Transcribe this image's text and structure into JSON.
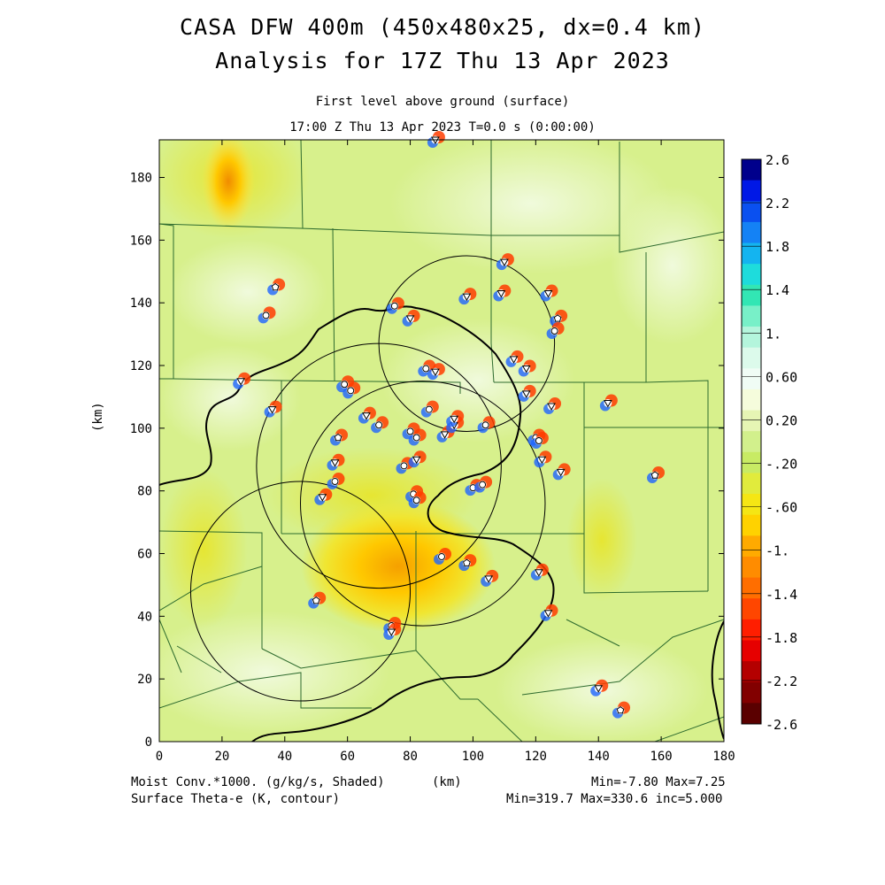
{
  "titles": {
    "line1": "CASA DFW 400m (450x480x25, dx=0.4 km)",
    "line2": "Analysis for 17Z Thu 13 Apr 2023",
    "sub1": "First level above ground (surface)",
    "sub2": "17:00 Z Thu 13 Apr 2023   T=0.0 s (0:00:00)"
  },
  "axes": {
    "x_label": "(km)",
    "y_label": "(km)",
    "x_range": [
      0,
      180
    ],
    "y_range": [
      0,
      192
    ],
    "x_ticks": [
      "0",
      "20",
      "40",
      "60",
      "80",
      "100",
      "120",
      "140",
      "160",
      "180"
    ],
    "y_ticks": [
      "0",
      "20",
      "40",
      "60",
      "80",
      "100",
      "120",
      "140",
      "160",
      "180"
    ]
  },
  "colorbar": {
    "labels": [
      "2.6",
      "2.2",
      "1.8",
      "1.4",
      "1.",
      "0.60",
      "0.20",
      "-.20",
      "-.60",
      "-1.",
      "-1.4",
      "-1.8",
      "-2.2",
      "-2.6"
    ],
    "colors": [
      "#00008c",
      "#0018e6",
      "#0a50f0",
      "#1482f5",
      "#14b4f0",
      "#1edcdc",
      "#32e6b4",
      "#78f0c8",
      "#b4f5dc",
      "#dcfaeb",
      "#f0fcf5",
      "#f5fcdc",
      "#e6f5b4",
      "#d2f08c",
      "#c8eb64",
      "#e1eb3c",
      "#f5e614",
      "#ffd200",
      "#ffaa00",
      "#ff8c00",
      "#ff6e00",
      "#ff4600",
      "#ff1e00",
      "#e60000",
      "#b40000",
      "#820000",
      "#5a0000"
    ]
  },
  "footer": {
    "left1": "Moist Conv.*1000. (g/kg/s, Shaded)",
    "mid1": "(km)",
    "right1": "Min=-7.80 Max=7.25",
    "left2": "Surface Theta-e (K, contour)",
    "right2": "Min=319.7 Max=330.6 inc=5.000"
  },
  "radars": [
    {
      "x": 98,
      "y": 127,
      "r": 28
    },
    {
      "x": 70,
      "y": 88,
      "r": 39
    },
    {
      "x": 84,
      "y": 76,
      "r": 39
    },
    {
      "x": 45,
      "y": 48,
      "r": 35
    }
  ],
  "stations": [
    {
      "x": 88,
      "y": 192,
      "s": "down"
    },
    {
      "x": 37,
      "y": 145,
      "s": "pent"
    },
    {
      "x": 34,
      "y": 136,
      "s": "circ"
    },
    {
      "x": 75,
      "y": 139,
      "s": "circ"
    },
    {
      "x": 80,
      "y": 135,
      "s": "down"
    },
    {
      "x": 98,
      "y": 142,
      "s": "down"
    },
    {
      "x": 109,
      "y": 143,
      "s": "down"
    },
    {
      "x": 110,
      "y": 153,
      "s": "down"
    },
    {
      "x": 124,
      "y": 143,
      "s": "down"
    },
    {
      "x": 127,
      "y": 135,
      "s": "pent"
    },
    {
      "x": 126,
      "y": 131,
      "s": "circ"
    },
    {
      "x": 26,
      "y": 115,
      "s": "down"
    },
    {
      "x": 36,
      "y": 106,
      "s": "down"
    },
    {
      "x": 59,
      "y": 114,
      "s": "circ"
    },
    {
      "x": 61,
      "y": 112,
      "s": "circ"
    },
    {
      "x": 66,
      "y": 104,
      "s": "down"
    },
    {
      "x": 70,
      "y": 101,
      "s": "circ"
    },
    {
      "x": 85,
      "y": 119,
      "s": "circ"
    },
    {
      "x": 88,
      "y": 118,
      "s": "down"
    },
    {
      "x": 113,
      "y": 122,
      "s": "down"
    },
    {
      "x": 117,
      "y": 119,
      "s": "down"
    },
    {
      "x": 117,
      "y": 111,
      "s": "down"
    },
    {
      "x": 125,
      "y": 107,
      "s": "down"
    },
    {
      "x": 143,
      "y": 108,
      "s": "down"
    },
    {
      "x": 57,
      "y": 97,
      "s": "pent"
    },
    {
      "x": 80,
      "y": 99,
      "s": "circ"
    },
    {
      "x": 82,
      "y": 97,
      "s": "circ"
    },
    {
      "x": 86,
      "y": 106,
      "s": "circ"
    },
    {
      "x": 91,
      "y": 98,
      "s": "down"
    },
    {
      "x": 94,
      "y": 101,
      "s": "down"
    },
    {
      "x": 94,
      "y": 103,
      "s": "down"
    },
    {
      "x": 104,
      "y": 101,
      "s": "circ"
    },
    {
      "x": 120,
      "y": 97,
      "s": "circ"
    },
    {
      "x": 121,
      "y": 96,
      "s": "circ"
    },
    {
      "x": 122,
      "y": 90,
      "s": "down"
    },
    {
      "x": 128,
      "y": 86,
      "s": "down"
    },
    {
      "x": 158,
      "y": 85,
      "s": "pent"
    },
    {
      "x": 56,
      "y": 89,
      "s": "down"
    },
    {
      "x": 78,
      "y": 88,
      "s": "circ"
    },
    {
      "x": 82,
      "y": 90,
      "s": "down"
    },
    {
      "x": 56,
      "y": 83,
      "s": "circ"
    },
    {
      "x": 52,
      "y": 78,
      "s": "down"
    },
    {
      "x": 81,
      "y": 79,
      "s": "circ"
    },
    {
      "x": 82,
      "y": 77,
      "s": "circ"
    },
    {
      "x": 100,
      "y": 81,
      "s": "circ"
    },
    {
      "x": 103,
      "y": 82,
      "s": "circ"
    },
    {
      "x": 90,
      "y": 59,
      "s": "circ"
    },
    {
      "x": 98,
      "y": 57,
      "s": "pent"
    },
    {
      "x": 105,
      "y": 52,
      "s": "down"
    },
    {
      "x": 121,
      "y": 54,
      "s": "down"
    },
    {
      "x": 50,
      "y": 45,
      "s": "pent"
    },
    {
      "x": 124,
      "y": 41,
      "s": "down"
    },
    {
      "x": 74,
      "y": 37,
      "s": "circ"
    },
    {
      "x": 74,
      "y": 35,
      "s": "down"
    },
    {
      "x": 140,
      "y": 17,
      "s": "down"
    },
    {
      "x": 147,
      "y": 10,
      "s": "pent"
    }
  ]
}
